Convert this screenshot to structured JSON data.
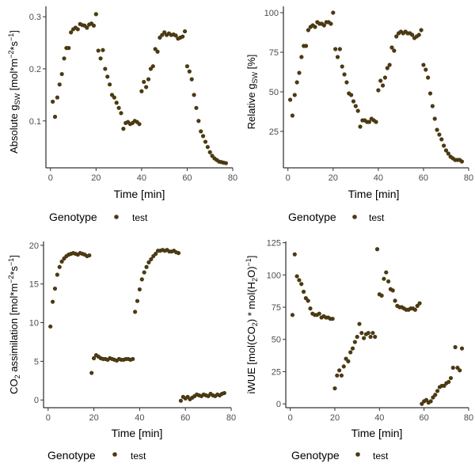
{
  "colors": {
    "points": "#4b3a12",
    "axis": "#000000",
    "tick_text": "#4d4d4d",
    "background": "#ffffff"
  },
  "legend": {
    "title": "Genotype",
    "label": "test"
  },
  "chart_data": [
    {
      "type": "scatter",
      "id": "abs_gsw",
      "xlabel": "Time [min]",
      "ylabel": "Absolute g_SW [mol*m^-2*s^-1]",
      "ylabel_parts": {
        "pre": "Absolute g",
        "sub": "SW",
        "mid": " [mol*m",
        "sup1": "−2",
        "mid2": "*s",
        "sup2": "−1",
        "post": "]"
      },
      "xlim": [
        -2,
        80
      ],
      "ylim": [
        0.01,
        0.32
      ],
      "xticks": [
        0,
        20,
        40,
        60,
        80
      ],
      "xticklabels": [
        "0",
        "20",
        "40",
        "60",
        "80"
      ],
      "yticks": [
        0.1,
        0.2,
        0.3
      ],
      "yticklabels": [
        "0.1",
        "0.2",
        "0.3"
      ],
      "grid": false,
      "legend_position": "bottom",
      "series": [
        {
          "x": [
            1,
            2,
            3,
            4,
            5,
            6,
            7,
            8,
            9,
            10,
            11,
            12,
            13,
            14,
            15,
            16,
            17,
            18,
            19,
            20,
            21,
            22,
            23,
            24,
            25,
            26,
            27,
            28,
            29,
            30,
            31,
            32,
            33,
            34,
            35,
            36,
            37,
            38,
            39,
            40,
            41,
            42,
            43,
            44,
            45,
            46,
            47,
            48,
            49,
            50,
            51,
            52,
            53,
            54,
            55,
            56,
            57,
            58,
            59,
            60,
            61,
            62,
            63,
            64,
            65,
            66,
            67,
            68,
            69,
            70,
            71,
            72,
            73,
            74,
            75,
            76,
            77
          ],
          "y": [
            0.137,
            0.108,
            0.145,
            0.17,
            0.19,
            0.22,
            0.24,
            0.24,
            0.27,
            0.276,
            0.279,
            0.276,
            0.286,
            0.284,
            0.283,
            0.279,
            0.285,
            0.287,
            0.283,
            0.305,
            0.235,
            0.22,
            0.236,
            0.2,
            0.185,
            0.17,
            0.15,
            0.145,
            0.135,
            0.125,
            0.115,
            0.085,
            0.096,
            0.098,
            0.094,
            0.096,
            0.1,
            0.098,
            0.094,
            0.157,
            0.175,
            0.165,
            0.18,
            0.2,
            0.205,
            0.238,
            0.233,
            0.26,
            0.265,
            0.27,
            0.265,
            0.268,
            0.265,
            0.266,
            0.264,
            0.258,
            0.26,
            0.262,
            0.272,
            0.205,
            0.195,
            0.18,
            0.15,
            0.125,
            0.1,
            0.08,
            0.071,
            0.06,
            0.05,
            0.04,
            0.033,
            0.028,
            0.025,
            0.022,
            0.021,
            0.02,
            0.019
          ]
        }
      ]
    },
    {
      "type": "scatter",
      "id": "rel_gsw",
      "xlabel": "Time [min]",
      "ylabel": "Relative g_SW [%]",
      "ylabel_parts": {
        "pre": "Relative g",
        "sub": "SW",
        "post": " [%]"
      },
      "xlim": [
        -2,
        80
      ],
      "ylim": [
        2,
        104
      ],
      "xticks": [
        0,
        20,
        40,
        60,
        80
      ],
      "xticklabels": [
        "0",
        "20",
        "40",
        "60",
        "80"
      ],
      "yticks": [
        25,
        50,
        75,
        100
      ],
      "yticklabels": [
        "25",
        "50",
        "75",
        "100"
      ],
      "grid": false,
      "legend_position": "bottom",
      "series": [
        {
          "x": [
            1,
            2,
            3,
            4,
            5,
            6,
            7,
            8,
            9,
            10,
            11,
            12,
            13,
            14,
            15,
            16,
            17,
            18,
            19,
            20,
            21,
            22,
            23,
            24,
            25,
            26,
            27,
            28,
            29,
            30,
            31,
            32,
            33,
            34,
            35,
            36,
            37,
            38,
            39,
            40,
            41,
            42,
            43,
            44,
            45,
            46,
            47,
            48,
            49,
            50,
            51,
            52,
            53,
            54,
            55,
            56,
            57,
            58,
            59,
            60,
            61,
            62,
            63,
            64,
            65,
            66,
            67,
            68,
            69,
            70,
            71,
            72,
            73,
            74,
            75,
            76,
            77
          ],
          "y": [
            45,
            35,
            48,
            56,
            62,
            72,
            79,
            79,
            89,
            91,
            92,
            91,
            94,
            93,
            93,
            92,
            94,
            94,
            93,
            100,
            77,
            72,
            77,
            66,
            61,
            56,
            49,
            48,
            44,
            41,
            38,
            28,
            32,
            32,
            31,
            31,
            33,
            32,
            31,
            51,
            57,
            54,
            59,
            65,
            67,
            78,
            76,
            85,
            87,
            88,
            87,
            88,
            87,
            87,
            86,
            84,
            85,
            86,
            89,
            67,
            64,
            59,
            49,
            41,
            33,
            26,
            23,
            20,
            16,
            13,
            11,
            9,
            8,
            7,
            7,
            7,
            6
          ]
        }
      ]
    },
    {
      "type": "scatter",
      "id": "co2_assim",
      "xlabel": "Time [min]",
      "ylabel": "CO2 assimilation [mol*m^-2*s^-1]",
      "ylabel_parts": {
        "pre": "CO",
        "sub": "2",
        "mid": " assimilation [mol*m",
        "sup1": "−2",
        "mid2": "*s",
        "sup2": "−1",
        "post": "]"
      },
      "xlim": [
        -2,
        80
      ],
      "ylim": [
        -1,
        20.5
      ],
      "xticks": [
        0,
        20,
        40,
        60,
        80
      ],
      "xticklabels": [
        "0",
        "20",
        "40",
        "60",
        "80"
      ],
      "yticks": [
        0,
        5,
        10,
        15,
        20
      ],
      "yticklabels": [
        "0",
        "5",
        "10",
        "15",
        "20"
      ],
      "grid": false,
      "legend_position": "bottom",
      "series": [
        {
          "x": [
            1,
            2,
            3,
            4,
            5,
            6,
            7,
            8,
            9,
            10,
            11,
            12,
            13,
            14,
            15,
            16,
            17,
            18,
            19,
            20,
            21,
            22,
            23,
            24,
            25,
            26,
            27,
            28,
            29,
            30,
            31,
            32,
            33,
            34,
            35,
            36,
            37,
            38,
            39,
            40,
            41,
            42,
            43,
            44,
            45,
            46,
            47,
            48,
            49,
            50,
            51,
            52,
            53,
            54,
            55,
            56,
            57,
            58,
            59,
            60,
            61,
            62,
            63,
            64,
            65,
            66,
            67,
            68,
            69,
            70,
            71,
            72,
            73,
            74,
            75,
            76,
            77
          ],
          "y": [
            9.5,
            12.7,
            14.4,
            16.2,
            17.2,
            17.9,
            18.3,
            18.6,
            18.8,
            18.9,
            19.0,
            18.9,
            18.8,
            19.0,
            18.9,
            18.8,
            18.6,
            18.7,
            3.5,
            5.4,
            5.8,
            5.6,
            5.4,
            5.3,
            5.3,
            5.2,
            5.4,
            5.3,
            5.2,
            5.1,
            5.3,
            5.2,
            5.2,
            5.3,
            5.3,
            5.2,
            5.3,
            11.4,
            12.8,
            14.3,
            15.6,
            16.5,
            17.2,
            17.8,
            18.2,
            18.6,
            18.9,
            19.3,
            19.3,
            19.4,
            19.3,
            19.4,
            19.2,
            19.2,
            19.3,
            19.1,
            19.0,
            -0.1,
            0.4,
            0.2,
            0.4,
            0.1,
            0.3,
            0.5,
            0.7,
            0.6,
            0.5,
            0.7,
            0.6,
            0.5,
            0.8,
            0.6,
            0.5,
            0.7,
            0.6,
            0.8,
            0.9
          ]
        }
      ]
    },
    {
      "type": "scatter",
      "id": "iwue",
      "xlabel": "Time [min]",
      "ylabel": "iWUE [mol(CO2) * mol(H2O)^-1]",
      "ylabel_parts": {
        "pre": "iWUE [mol(CO",
        "sub": "2",
        "mid": ") * mol(H",
        "sub2": "2",
        "mid2": "O)",
        "sup2": "−1",
        "post": "]"
      },
      "xlim": [
        -2,
        80
      ],
      "ylim": [
        -3,
        126
      ],
      "xticks": [
        0,
        20,
        40,
        60,
        80
      ],
      "xticklabels": [
        "0",
        "20",
        "40",
        "60",
        "80"
      ],
      "yticks": [
        0,
        25,
        50,
        75,
        100,
        125
      ],
      "yticklabels": [
        "0",
        "25",
        "50",
        "75",
        "100",
        "125"
      ],
      "grid": false,
      "legend_position": "bottom",
      "series": [
        {
          "x": [
            1,
            2,
            3,
            4,
            5,
            6,
            7,
            8,
            9,
            10,
            11,
            12,
            13,
            14,
            15,
            16,
            17,
            18,
            19,
            20,
            21,
            22,
            23,
            24,
            25,
            26,
            27,
            28,
            29,
            30,
            31,
            32,
            33,
            34,
            35,
            36,
            37,
            38,
            39,
            40,
            41,
            42,
            43,
            44,
            45,
            46,
            47,
            48,
            49,
            50,
            51,
            52,
            53,
            54,
            55,
            56,
            57,
            58,
            59,
            60,
            61,
            62,
            63,
            64,
            65,
            66,
            67,
            68,
            69,
            70,
            71,
            72,
            73,
            74,
            75,
            76,
            77
          ],
          "y": [
            69,
            116,
            99,
            96,
            93,
            87,
            82,
            80,
            74,
            70,
            69,
            69,
            70,
            67,
            68,
            67,
            67,
            66,
            66,
            12,
            22,
            26,
            22,
            29,
            35,
            33,
            40,
            43,
            48,
            52,
            62,
            55,
            51,
            54,
            55,
            52,
            55,
            52,
            120,
            85,
            84,
            97,
            102,
            95,
            89,
            88,
            80,
            76,
            75,
            75,
            74,
            73,
            73,
            74,
            74,
            73,
            76,
            78,
            0,
            2,
            3,
            1,
            2,
            5,
            7,
            10,
            13,
            14,
            14,
            16,
            17,
            20,
            28,
            44,
            28,
            26,
            43
          ]
        }
      ]
    }
  ]
}
